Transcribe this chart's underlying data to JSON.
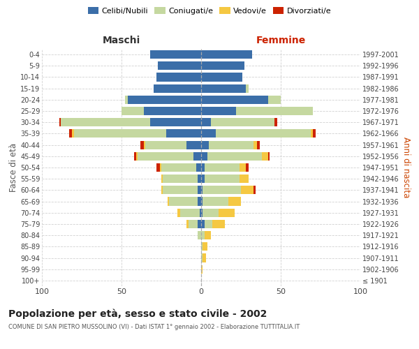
{
  "age_groups": [
    "100+",
    "95-99",
    "90-94",
    "85-89",
    "80-84",
    "75-79",
    "70-74",
    "65-69",
    "60-64",
    "55-59",
    "50-54",
    "45-49",
    "40-44",
    "35-39",
    "30-34",
    "25-29",
    "20-24",
    "15-19",
    "10-14",
    "5-9",
    "0-4"
  ],
  "birth_years": [
    "≤ 1901",
    "1902-1906",
    "1907-1911",
    "1912-1916",
    "1917-1921",
    "1922-1926",
    "1927-1931",
    "1932-1936",
    "1937-1941",
    "1942-1946",
    "1947-1951",
    "1952-1956",
    "1957-1961",
    "1962-1966",
    "1967-1971",
    "1972-1976",
    "1977-1981",
    "1982-1986",
    "1987-1991",
    "1992-1996",
    "1997-2001"
  ],
  "male_celibi": [
    0,
    0,
    0,
    0,
    0,
    2,
    1,
    2,
    2,
    2,
    3,
    5,
    9,
    22,
    32,
    36,
    46,
    30,
    28,
    27,
    32
  ],
  "male_coniugati": [
    0,
    0,
    0,
    0,
    2,
    6,
    12,
    18,
    22,
    22,
    22,
    35,
    26,
    58,
    56,
    14,
    2,
    0,
    0,
    0,
    0
  ],
  "male_vedovi": [
    0,
    0,
    0,
    0,
    0,
    1,
    2,
    1,
    1,
    1,
    1,
    1,
    1,
    1,
    0,
    0,
    0,
    0,
    0,
    0,
    0
  ],
  "male_divorziati": [
    0,
    0,
    0,
    0,
    0,
    0,
    0,
    0,
    0,
    0,
    2,
    1,
    2,
    2,
    1,
    0,
    0,
    0,
    0,
    0,
    0
  ],
  "female_nubili": [
    0,
    0,
    0,
    0,
    0,
    2,
    1,
    1,
    1,
    2,
    2,
    4,
    5,
    9,
    6,
    22,
    42,
    28,
    26,
    27,
    32
  ],
  "female_coniugate": [
    0,
    0,
    1,
    1,
    2,
    5,
    10,
    16,
    24,
    22,
    22,
    34,
    28,
    60,
    40,
    48,
    8,
    2,
    0,
    0,
    0
  ],
  "female_vedove": [
    0,
    1,
    2,
    3,
    4,
    8,
    10,
    8,
    8,
    6,
    4,
    4,
    2,
    1,
    0,
    0,
    0,
    0,
    0,
    0,
    0
  ],
  "female_divorziate": [
    0,
    0,
    0,
    0,
    0,
    0,
    0,
    0,
    1,
    0,
    2,
    1,
    2,
    2,
    2,
    0,
    0,
    0,
    0,
    0,
    0
  ],
  "colors": {
    "celibi": "#3B6EA8",
    "coniugati": "#C5D8A0",
    "vedovi": "#F5C842",
    "divorziati": "#CC2200"
  },
  "title": "Popolazione per età, sesso e stato civile - 2002",
  "subtitle": "COMUNE DI SAN PIETRO MUSSOLINO (VI) - Dati ISTAT 1° gennaio 2002 - Elaborazione TUTTITALIA.IT",
  "xlabel_left": "Maschi",
  "xlabel_right": "Femmine",
  "ylabel_left": "Fasce di età",
  "ylabel_right": "Anni di nascita",
  "xlim": 100,
  "bg_color": "#ffffff",
  "grid_color": "#cccccc"
}
